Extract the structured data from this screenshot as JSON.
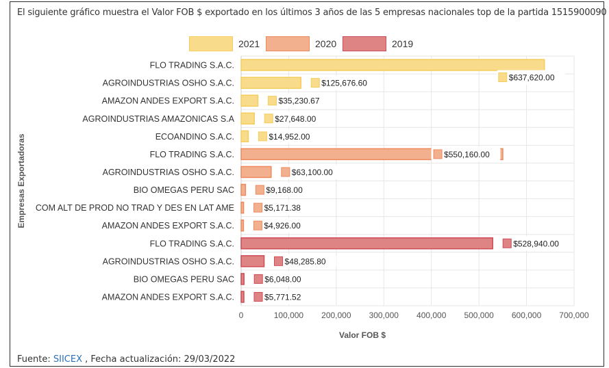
{
  "header": {
    "description": "El siguiente gráfico muestra el Valor FOB $ exportado en los últimos 3 años de las 5 empresas nacionales top de la partida 1515900090"
  },
  "legend": [
    {
      "label": "2021",
      "fill": "#f8dc8c",
      "stroke": "#f4cd5c"
    },
    {
      "label": "2020",
      "fill": "#f3b08f",
      "stroke": "#ec8a5e"
    },
    {
      "label": "2019",
      "fill": "#de8484",
      "stroke": "#cf4b55"
    }
  ],
  "chart_data": {
    "type": "bar",
    "orientation": "horizontal",
    "title": "",
    "xlabel": "Valor FOB $",
    "ylabel": "Empresas Exportadoras",
    "xlim": [
      0,
      700000
    ],
    "xticks": [
      0,
      100000,
      200000,
      300000,
      400000,
      500000,
      600000,
      700000
    ],
    "xtick_labels": [
      "0",
      "100,000",
      "200,000",
      "300,000",
      "400,000",
      "500,000",
      "600,000",
      "700,000"
    ],
    "grid": true,
    "bars": [
      {
        "company": "FLO TRADING S.A.C.",
        "year": "2021",
        "value": 637620,
        "label": "$637,620.00"
      },
      {
        "company": "AGROINDUSTRIAS OSHO S.A.C.",
        "year": "2021",
        "value": 125676.6,
        "label": "$125,676.60"
      },
      {
        "company": "AMAZON ANDES EXPORT S.A.C.",
        "year": "2021",
        "value": 35230.67,
        "label": "$35,230.67"
      },
      {
        "company": "AGROINDUSTRIAS AMAZONICAS S.A",
        "year": "2021",
        "value": 27648,
        "label": "$27,648.00"
      },
      {
        "company": "ECOANDINO S.A.C.",
        "year": "2021",
        "value": 14952,
        "label": "$14,952.00"
      },
      {
        "company": "FLO TRADING S.A.C.",
        "year": "2020",
        "value": 550160,
        "label": "$550,160.00"
      },
      {
        "company": "AGROINDUSTRIAS OSHO S.A.C.",
        "year": "2020",
        "value": 63100,
        "label": "$63,100.00"
      },
      {
        "company": "BIO OMEGAS PERU SAC",
        "year": "2020",
        "value": 9168,
        "label": "$9,168.00"
      },
      {
        "company": "COM ALT DE PROD NO TRAD Y DES EN LAT AME",
        "year": "2020",
        "value": 5171.38,
        "label": "$5,171.38"
      },
      {
        "company": "AMAZON ANDES EXPORT S.A.C.",
        "year": "2020",
        "value": 4926,
        "label": "$4,926.00"
      },
      {
        "company": "FLO TRADING S.A.C.",
        "year": "2019",
        "value": 528940,
        "label": "$528,940.00"
      },
      {
        "company": "AGROINDUSTRIAS OSHO S.A.C.",
        "year": "2019",
        "value": 48285.8,
        "label": "$48,285.80"
      },
      {
        "company": "BIO OMEGAS PERU SAC",
        "year": "2019",
        "value": 6048,
        "label": "$6,048.00"
      },
      {
        "company": "AMAZON ANDES EXPORT S.A.C.",
        "year": "2019",
        "value": 5771.52,
        "label": "$5,771.52"
      }
    ]
  },
  "footer": {
    "source_prefix": "Fuente: ",
    "source_link": "SIICEX",
    "update_text": " , Fecha actualización: 29/03/2022"
  }
}
